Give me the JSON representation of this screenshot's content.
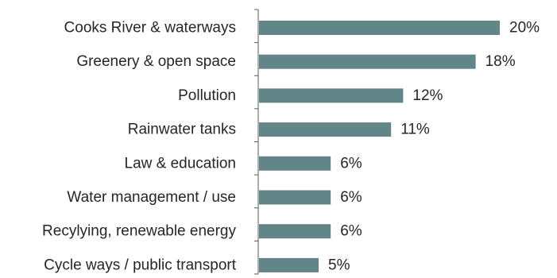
{
  "colors": {
    "bar": "#628588",
    "axis": "#595959",
    "text": "#262626",
    "background": "#ffffff"
  },
  "chart_data": {
    "type": "bar",
    "orientation": "horizontal",
    "title": "",
    "xlabel": "",
    "ylabel": "",
    "categories": [
      "Cooks River & waterways",
      "Greenery & open space",
      "Pollution",
      "Rainwater tanks",
      "Law & education",
      "Water management / use",
      "Recylying, renewable energy",
      "Cycle ways / public transport"
    ],
    "values": [
      20,
      18,
      12,
      11,
      6,
      6,
      6,
      5
    ],
    "value_labels": [
      "20%",
      "18%",
      "12%",
      "11%",
      "6%",
      "6%",
      "6%",
      "5%"
    ],
    "unit": "%",
    "xlim": [
      0,
      20
    ],
    "grid": false,
    "legend": "none"
  }
}
